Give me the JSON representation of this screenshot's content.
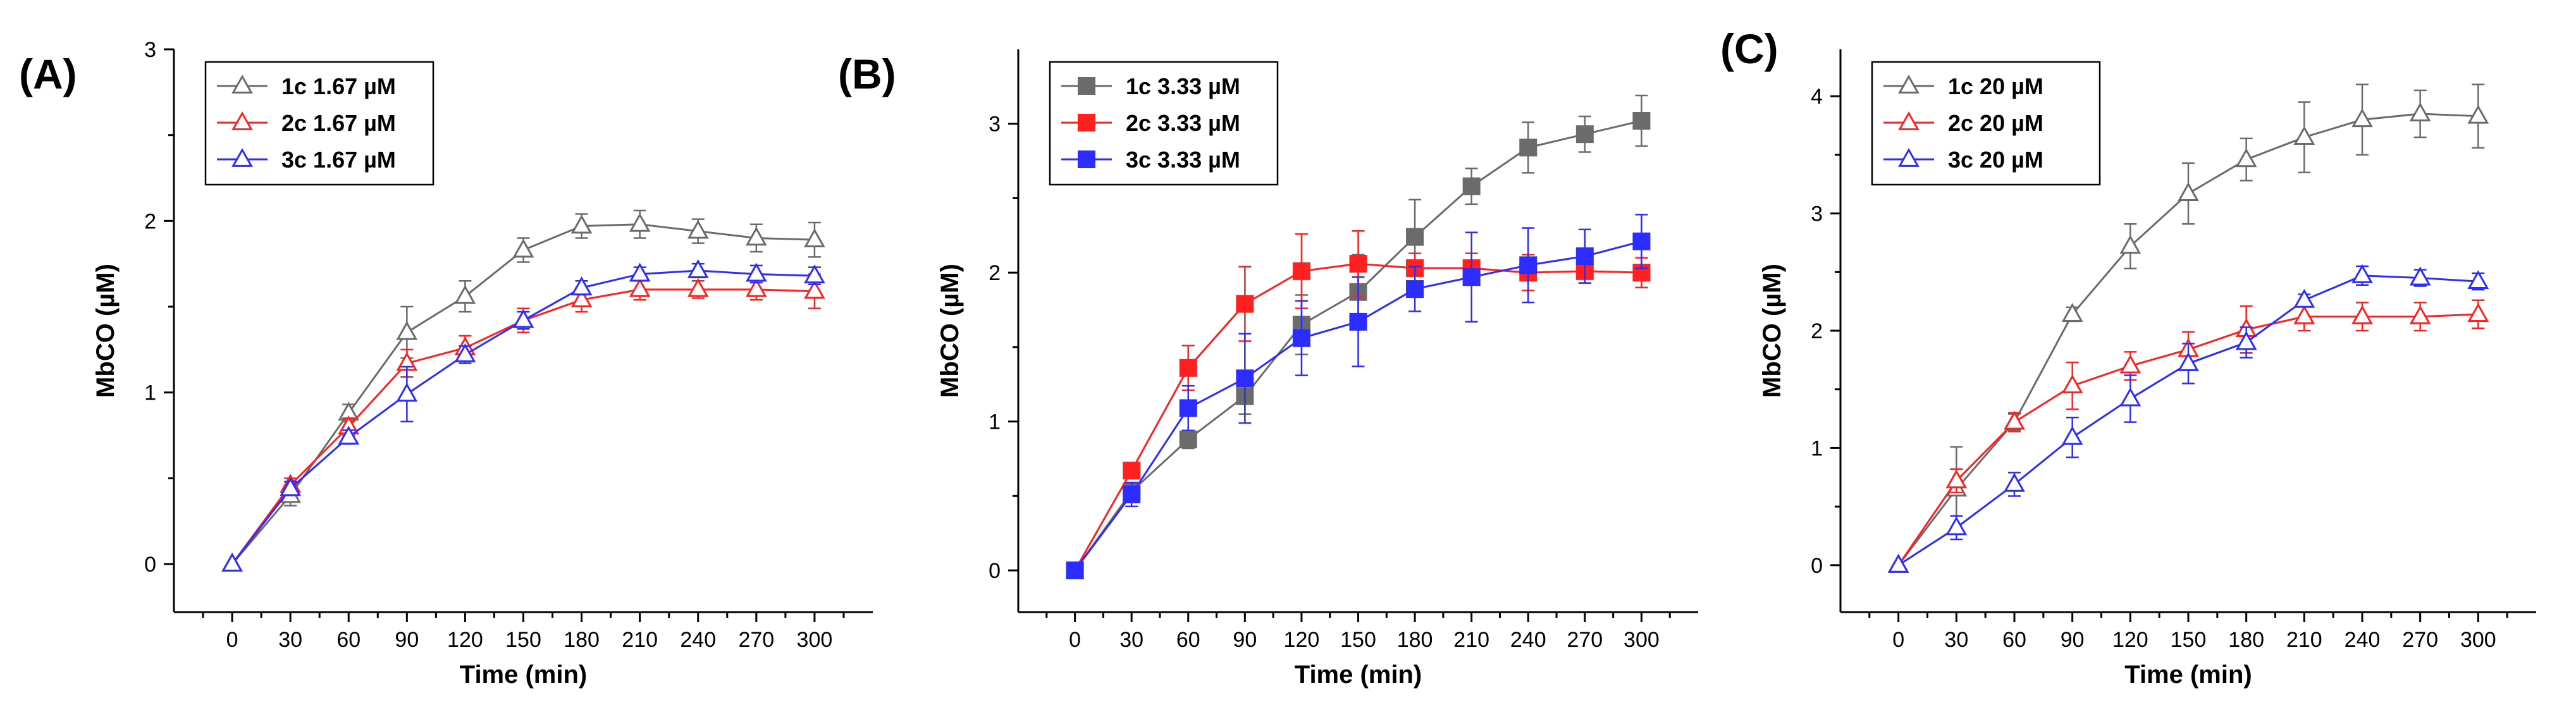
{
  "colors": {
    "gray": "#6b6b6b",
    "red": "#ff2020",
    "blue": "#2c2cff",
    "axis": "#000000"
  },
  "chart_data": [
    {
      "type": "line",
      "panel_label": "(A)",
      "marker": "triangle-open",
      "xlabel": "Time (min)",
      "ylabel": "MbCO (µM)",
      "xlim": [
        -30,
        330
      ],
      "ylim": [
        -0.28,
        3
      ],
      "x": [
        0,
        30,
        60,
        90,
        120,
        150,
        180,
        210,
        240,
        270,
        300
      ],
      "xticks": [
        "0",
        "30",
        "60",
        "90",
        "120",
        "150",
        "180",
        "210",
        "240",
        "270",
        "300"
      ],
      "yticks": [
        "0",
        "1",
        "2",
        "3"
      ],
      "legend_position": "top-left",
      "series": [
        {
          "name": "1c 1.67 µM",
          "color": "gray",
          "values": [
            0,
            0.4,
            0.88,
            1.35,
            1.56,
            1.83,
            1.97,
            1.98,
            1.94,
            1.9,
            1.89
          ],
          "errors": [
            0,
            0.06,
            0.05,
            0.15,
            0.09,
            0.07,
            0.07,
            0.08,
            0.07,
            0.08,
            0.1
          ]
        },
        {
          "name": "2c 1.67 µM",
          "color": "red",
          "values": [
            0,
            0.46,
            0.8,
            1.17,
            1.26,
            1.42,
            1.54,
            1.6,
            1.6,
            1.6,
            1.59
          ],
          "errors": [
            0,
            0.04,
            0.05,
            0.08,
            0.07,
            0.07,
            0.07,
            0.06,
            0.05,
            0.06,
            0.1
          ]
        },
        {
          "name": "3c 1.67 µM",
          "color": "blue",
          "values": [
            0,
            0.44,
            0.74,
            0.99,
            1.22,
            1.42,
            1.61,
            1.69,
            1.71,
            1.69,
            1.68
          ],
          "errors": [
            0,
            0.04,
            0.04,
            0.16,
            0.05,
            0.05,
            0.04,
            0.04,
            0.04,
            0.05,
            0.05
          ]
        }
      ]
    },
    {
      "type": "line",
      "panel_label": "(B)",
      "marker": "square-filled",
      "xlabel": "Time (min)",
      "ylabel": "MbCO (µM)",
      "xlim": [
        -30,
        330
      ],
      "ylim": [
        -0.28,
        3.5
      ],
      "x": [
        0,
        30,
        60,
        90,
        120,
        150,
        180,
        210,
        240,
        270,
        300
      ],
      "xticks": [
        "0",
        "30",
        "60",
        "90",
        "120",
        "150",
        "180",
        "210",
        "240",
        "270",
        "300"
      ],
      "yticks": [
        "0",
        "1",
        "2",
        "3"
      ],
      "legend_position": "top-left",
      "series": [
        {
          "name": "1c 3.33 µM",
          "color": "gray",
          "values": [
            0,
            0.53,
            0.88,
            1.17,
            1.65,
            1.87,
            2.24,
            2.58,
            2.84,
            2.93,
            3.02
          ],
          "errors": [
            0,
            0.06,
            0.06,
            0.12,
            0.2,
            0.25,
            0.25,
            0.12,
            0.17,
            0.12,
            0.17
          ]
        },
        {
          "name": "2c 3.33 µM",
          "color": "red",
          "values": [
            0,
            0.67,
            1.36,
            1.79,
            2.01,
            2.06,
            2.03,
            2.03,
            2.0,
            2.01,
            2.0
          ],
          "errors": [
            0,
            0.04,
            0.15,
            0.25,
            0.25,
            0.22,
            0.1,
            0.1,
            0.12,
            0.08,
            0.1
          ]
        },
        {
          "name": "3c 3.33 µM",
          "color": "blue",
          "values": [
            0,
            0.51,
            1.09,
            1.29,
            1.56,
            1.67,
            1.89,
            1.97,
            2.05,
            2.11,
            2.21
          ],
          "errors": [
            0,
            0.08,
            0.15,
            0.3,
            0.25,
            0.3,
            0.15,
            0.3,
            0.25,
            0.18,
            0.18
          ]
        }
      ]
    },
    {
      "type": "line",
      "panel_label": "(C)",
      "marker": "triangle-open",
      "xlabel": "Time (min)",
      "ylabel": "MbCO (µM)",
      "xlim": [
        -30,
        330
      ],
      "ylim": [
        -0.4,
        4.4
      ],
      "x": [
        0,
        30,
        60,
        90,
        120,
        150,
        180,
        210,
        240,
        270,
        300
      ],
      "xticks": [
        "0",
        "30",
        "60",
        "90",
        "120",
        "150",
        "180",
        "210",
        "240",
        "270",
        "300"
      ],
      "yticks": [
        "0",
        "1",
        "2",
        "3",
        "4"
      ],
      "legend_position": "top-left",
      "series": [
        {
          "name": "1c 20 µM",
          "color": "gray",
          "values": [
            0,
            0.65,
            1.22,
            2.14,
            2.72,
            3.17,
            3.46,
            3.65,
            3.8,
            3.85,
            3.83
          ],
          "errors": [
            0,
            0.36,
            0.07,
            0.06,
            0.19,
            0.26,
            0.18,
            0.3,
            0.3,
            0.2,
            0.27
          ]
        },
        {
          "name": "2c 20 µM",
          "color": "red",
          "values": [
            0,
            0.72,
            1.22,
            1.53,
            1.7,
            1.84,
            2.01,
            2.12,
            2.12,
            2.12,
            2.14
          ],
          "errors": [
            0,
            0.1,
            0.08,
            0.2,
            0.12,
            0.15,
            0.2,
            0.12,
            0.12,
            0.12,
            0.12
          ]
        },
        {
          "name": "3c 20 µM",
          "color": "blue",
          "values": [
            0,
            0.32,
            0.69,
            1.09,
            1.42,
            1.72,
            1.9,
            2.26,
            2.47,
            2.45,
            2.42
          ],
          "errors": [
            0,
            0.1,
            0.1,
            0.17,
            0.2,
            0.17,
            0.13,
            0.05,
            0.08,
            0.07,
            0.07
          ]
        }
      ]
    }
  ]
}
